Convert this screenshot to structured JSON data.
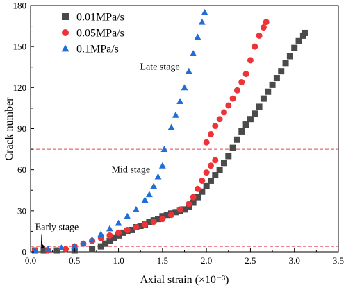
{
  "chart_data": {
    "type": "scatter",
    "xlabel": "Axial strain (×10⁻³)",
    "ylabel": "Crack number",
    "xlim": [
      0,
      3.5
    ],
    "ylim": [
      0,
      180
    ],
    "x_ticks": [
      "0.0",
      "0.5",
      "1.0",
      "1.5",
      "2.0",
      "2.5",
      "3.0",
      "3.5"
    ],
    "y_ticks": [
      "0",
      "30",
      "60",
      "90",
      "120",
      "150",
      "180"
    ],
    "x_tick_values": [
      0,
      0.5,
      1.0,
      1.5,
      2.0,
      2.5,
      3.0,
      3.5
    ],
    "y_tick_values": [
      0,
      30,
      60,
      90,
      120,
      150,
      180
    ],
    "legend_position": "top-left",
    "grid": false,
    "reference_lines": [
      {
        "y": 75,
        "color": "#e8404a",
        "style": "dashed"
      },
      {
        "y": 4,
        "color": "#e8404a",
        "style": "dashed"
      }
    ],
    "annotations": [
      {
        "text": "Late stage",
        "x": 1.47,
        "y": 133
      },
      {
        "text": "Mid stage",
        "x": 1.14,
        "y": 58
      },
      {
        "text": "Early stage",
        "x": 0.3,
        "y": 16,
        "arrow_to": [
          0.12,
          2.5
        ]
      }
    ],
    "series": [
      {
        "name": "0.01MPa/s",
        "marker": "square",
        "color": "#4a4a4a",
        "points": [
          [
            0.05,
            1
          ],
          [
            0.15,
            1
          ],
          [
            0.3,
            1
          ],
          [
            0.5,
            1
          ],
          [
            0.7,
            2
          ],
          [
            0.8,
            4
          ],
          [
            0.85,
            6
          ],
          [
            0.9,
            8
          ],
          [
            0.95,
            10
          ],
          [
            1.0,
            12
          ],
          [
            1.05,
            14
          ],
          [
            1.1,
            15
          ],
          [
            1.15,
            16
          ],
          [
            1.2,
            18
          ],
          [
            1.25,
            19
          ],
          [
            1.3,
            20
          ],
          [
            1.35,
            22
          ],
          [
            1.4,
            23
          ],
          [
            1.45,
            24
          ],
          [
            1.5,
            26
          ],
          [
            1.55,
            27
          ],
          [
            1.6,
            28
          ],
          [
            1.65,
            29
          ],
          [
            1.7,
            30
          ],
          [
            1.75,
            31
          ],
          [
            1.8,
            33
          ],
          [
            1.85,
            36
          ],
          [
            1.9,
            40
          ],
          [
            1.95,
            44
          ],
          [
            2.0,
            48
          ],
          [
            2.05,
            52
          ],
          [
            2.1,
            56
          ],
          [
            2.15,
            60
          ],
          [
            2.2,
            65
          ],
          [
            2.25,
            70
          ],
          [
            2.3,
            76
          ],
          [
            2.35,
            82
          ],
          [
            2.4,
            88
          ],
          [
            2.45,
            93
          ],
          [
            2.5,
            97
          ],
          [
            2.55,
            101
          ],
          [
            2.6,
            106
          ],
          [
            2.65,
            112
          ],
          [
            2.7,
            117
          ],
          [
            2.75,
            122
          ],
          [
            2.8,
            127
          ],
          [
            2.85,
            132
          ],
          [
            2.9,
            138
          ],
          [
            2.95,
            143
          ],
          [
            3.0,
            149
          ],
          [
            3.05,
            154
          ],
          [
            3.1,
            158
          ],
          [
            3.12,
            160
          ]
        ]
      },
      {
        "name": "0.05MPa/s",
        "marker": "circle",
        "color": "#ee3338",
        "points": [
          [
            0.05,
            1
          ],
          [
            0.2,
            1
          ],
          [
            0.4,
            2
          ],
          [
            0.5,
            4
          ],
          [
            0.6,
            6
          ],
          [
            0.7,
            8
          ],
          [
            0.8,
            10
          ],
          [
            0.9,
            12
          ],
          [
            1.0,
            14
          ],
          [
            1.1,
            16
          ],
          [
            1.2,
            18
          ],
          [
            1.3,
            20
          ],
          [
            1.4,
            22
          ],
          [
            1.5,
            24
          ],
          [
            1.6,
            27
          ],
          [
            1.7,
            31
          ],
          [
            1.8,
            35
          ],
          [
            1.85,
            40
          ],
          [
            1.9,
            46
          ],
          [
            1.95,
            52
          ],
          [
            2.0,
            58
          ],
          [
            2.05,
            63
          ],
          [
            2.1,
            67
          ],
          [
            2.0,
            80
          ],
          [
            2.05,
            86
          ],
          [
            2.1,
            92
          ],
          [
            2.15,
            97
          ],
          [
            2.2,
            102
          ],
          [
            2.25,
            107
          ],
          [
            2.3,
            112
          ],
          [
            2.35,
            118
          ],
          [
            2.4,
            124
          ],
          [
            2.45,
            130
          ],
          [
            2.5,
            140
          ],
          [
            2.55,
            150
          ],
          [
            2.6,
            158
          ],
          [
            2.65,
            164
          ],
          [
            2.68,
            168
          ]
        ]
      },
      {
        "name": "0.1MPa/s",
        "marker": "triangle",
        "color": "#1f6fd6",
        "points": [
          [
            0.05,
            1
          ],
          [
            0.2,
            2
          ],
          [
            0.35,
            3
          ],
          [
            0.5,
            4
          ],
          [
            0.6,
            6
          ],
          [
            0.7,
            9
          ],
          [
            0.8,
            13
          ],
          [
            0.9,
            17
          ],
          [
            1.0,
            21
          ],
          [
            1.1,
            26
          ],
          [
            1.2,
            31
          ],
          [
            1.3,
            38
          ],
          [
            1.35,
            42
          ],
          [
            1.4,
            48
          ],
          [
            1.45,
            55
          ],
          [
            1.5,
            63
          ],
          [
            1.52,
            75
          ],
          [
            1.6,
            91
          ],
          [
            1.65,
            100
          ],
          [
            1.7,
            110
          ],
          [
            1.75,
            120
          ],
          [
            1.8,
            132
          ],
          [
            1.85,
            145
          ],
          [
            1.9,
            157
          ],
          [
            1.95,
            168
          ],
          [
            1.98,
            175
          ]
        ]
      }
    ]
  }
}
